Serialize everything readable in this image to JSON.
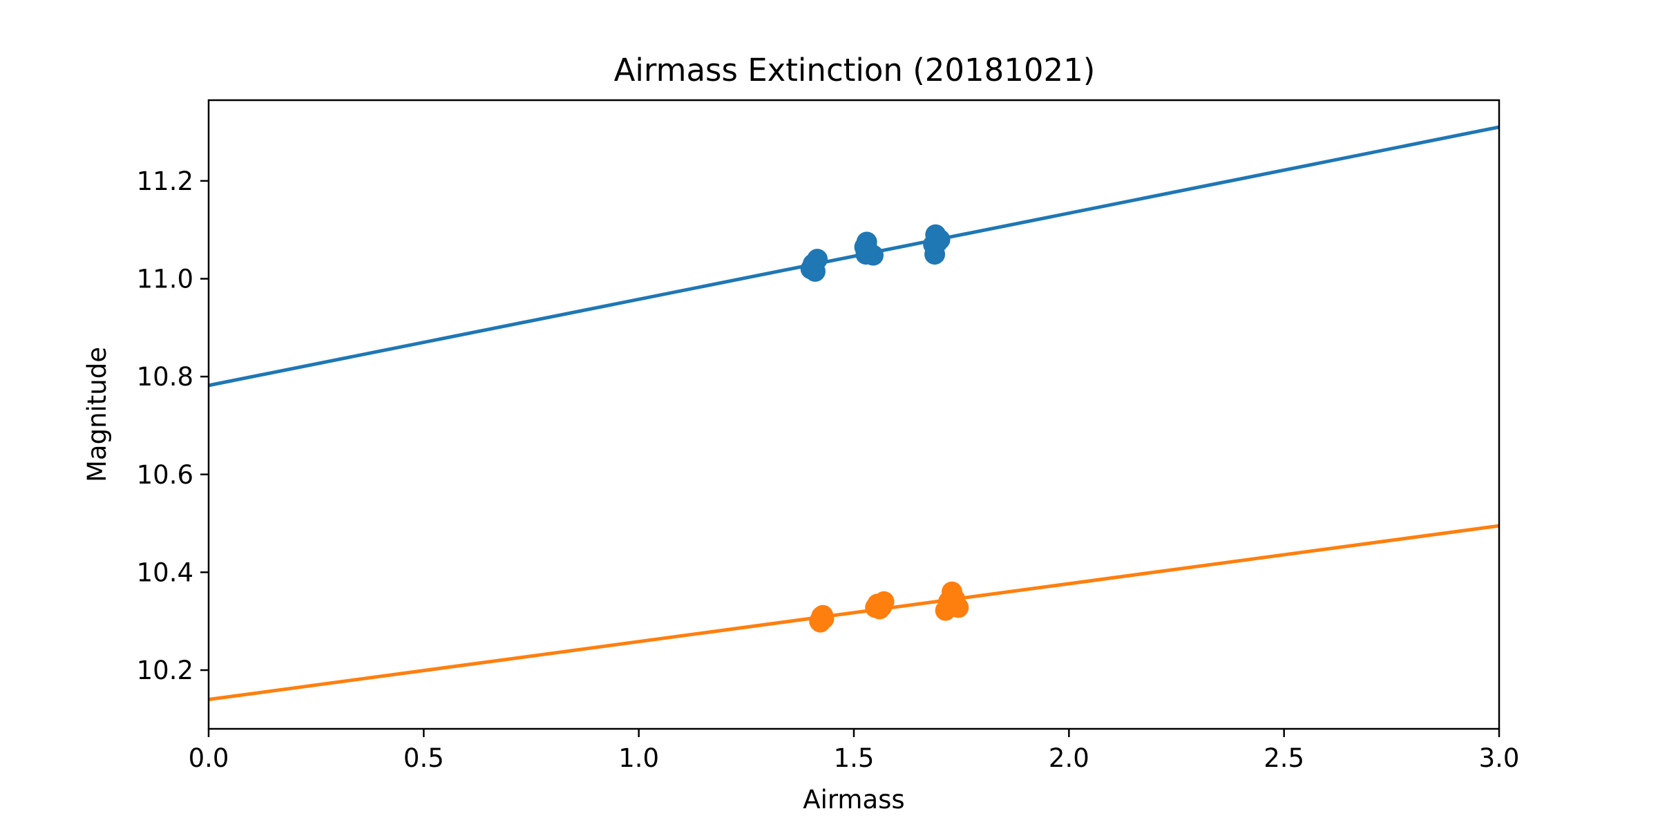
{
  "chart_data": {
    "type": "scatter",
    "title": "Airmass Extinction (20181021)",
    "xlabel": "Airmass",
    "ylabel": "Magnitude",
    "xlim": [
      0.0,
      3.0
    ],
    "ylim": [
      10.08,
      11.365
    ],
    "xticks": [
      "0.0",
      "0.5",
      "1.0",
      "1.5",
      "2.0",
      "2.5",
      "3.0"
    ],
    "yticks": [
      "10.2",
      "10.4",
      "10.6",
      "10.8",
      "11.0",
      "11.2"
    ],
    "grid": false,
    "legend": "none",
    "series": [
      {
        "color": "#1f77b4",
        "fit_line": {
          "x": [
            0.0,
            3.0
          ],
          "y": [
            10.782,
            11.31
          ]
        },
        "points": [
          {
            "x": 1.4,
            "y": 11.02
          },
          {
            "x": 1.405,
            "y": 11.03
          },
          {
            "x": 1.41,
            "y": 11.015
          },
          {
            "x": 1.415,
            "y": 11.04
          },
          {
            "x": 1.405,
            "y": 11.025
          },
          {
            "x": 1.525,
            "y": 11.065
          },
          {
            "x": 1.53,
            "y": 11.075
          },
          {
            "x": 1.535,
            "y": 11.055
          },
          {
            "x": 1.545,
            "y": 11.048
          },
          {
            "x": 1.528,
            "y": 11.05
          },
          {
            "x": 1.685,
            "y": 11.07
          },
          {
            "x": 1.69,
            "y": 11.09
          },
          {
            "x": 1.688,
            "y": 11.05
          },
          {
            "x": 1.7,
            "y": 11.08
          },
          {
            "x": 1.695,
            "y": 11.075
          }
        ]
      },
      {
        "color": "#ff7f0e",
        "fit_line": {
          "x": [
            0.0,
            3.0
          ],
          "y": [
            10.14,
            10.495
          ]
        },
        "points": [
          {
            "x": 1.42,
            "y": 10.3
          },
          {
            "x": 1.425,
            "y": 10.31
          },
          {
            "x": 1.43,
            "y": 10.305
          },
          {
            "x": 1.422,
            "y": 10.298
          },
          {
            "x": 1.428,
            "y": 10.312
          },
          {
            "x": 1.55,
            "y": 10.328
          },
          {
            "x": 1.555,
            "y": 10.335
          },
          {
            "x": 1.56,
            "y": 10.325
          },
          {
            "x": 1.57,
            "y": 10.34
          },
          {
            "x": 1.565,
            "y": 10.33
          },
          {
            "x": 1.72,
            "y": 10.34
          },
          {
            "x": 1.728,
            "y": 10.36
          },
          {
            "x": 1.735,
            "y": 10.345
          },
          {
            "x": 1.713,
            "y": 10.322
          },
          {
            "x": 1.743,
            "y": 10.328
          }
        ]
      }
    ]
  }
}
